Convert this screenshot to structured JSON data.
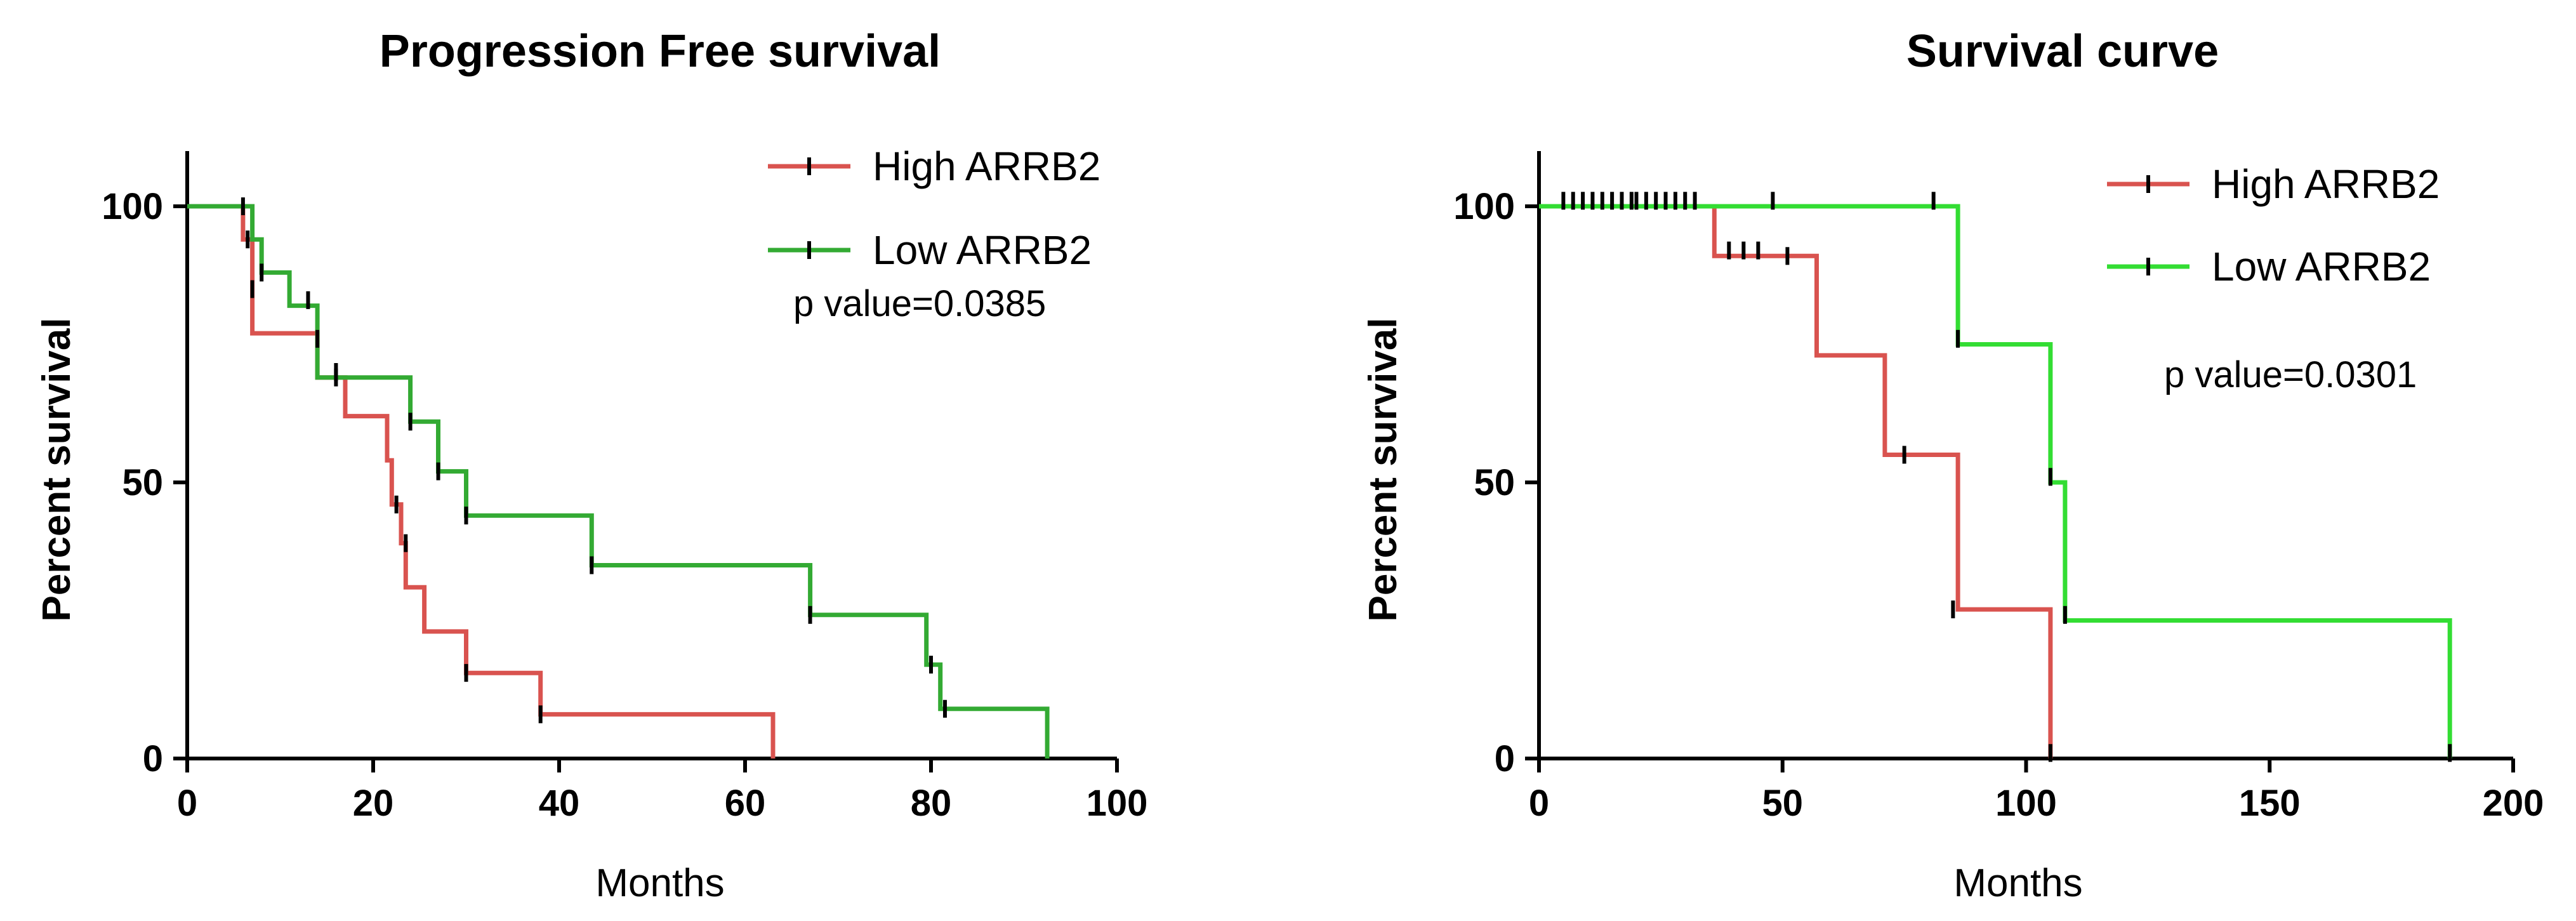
{
  "chart_data": [
    {
      "id": "pfs",
      "type": "line",
      "subtype": "kaplan-meier",
      "title": "Progression Free survival",
      "xlabel": "Months",
      "ylabel": "Percent survival",
      "xlim": [
        0,
        100
      ],
      "ylim": [
        0,
        110
      ],
      "xticks": [
        0,
        20,
        40,
        60,
        80,
        100
      ],
      "yticks": [
        0,
        50,
        100
      ],
      "annotation": "p value=0.0385",
      "series": [
        {
          "name": "High ARRB2",
          "color": "#d9534f",
          "steps": [
            [
              0,
              100
            ],
            [
              6,
              100
            ],
            [
              6,
              94
            ],
            [
              7,
              94
            ],
            [
              7,
              77
            ],
            [
              14,
              77
            ],
            [
              14,
              69
            ],
            [
              17,
              69
            ],
            [
              17,
              62
            ],
            [
              21.5,
              62
            ],
            [
              21.5,
              54
            ],
            [
              22,
              54
            ],
            [
              22,
              46
            ],
            [
              23,
              46
            ],
            [
              23,
              39
            ],
            [
              23.5,
              39
            ],
            [
              23.5,
              31
            ],
            [
              25.5,
              31
            ],
            [
              25.5,
              23
            ],
            [
              30,
              23
            ],
            [
              30,
              15.5
            ],
            [
              38,
              15.5
            ],
            [
              38,
              8
            ],
            [
              63,
              8
            ],
            [
              63,
              0
            ]
          ],
          "censored": [
            [
              6.5,
              94
            ],
            [
              7,
              85
            ],
            [
              16,
              69
            ],
            [
              22.5,
              46
            ],
            [
              23.5,
              39
            ],
            [
              30,
              15.5
            ],
            [
              38,
              8
            ]
          ]
        },
        {
          "name": "Low ARRB2",
          "color": "#33aa33",
          "steps": [
            [
              0,
              100
            ],
            [
              7,
              100
            ],
            [
              7,
              94
            ],
            [
              8,
              94
            ],
            [
              8,
              88
            ],
            [
              11,
              88
            ],
            [
              11,
              82
            ],
            [
              14,
              82
            ],
            [
              14,
              69
            ],
            [
              24,
              69
            ],
            [
              24,
              61
            ],
            [
              27,
              61
            ],
            [
              27,
              52
            ],
            [
              30,
              52
            ],
            [
              30,
              44
            ],
            [
              43.5,
              44
            ],
            [
              43.5,
              35
            ],
            [
              67,
              35
            ],
            [
              67,
              26
            ],
            [
              79.5,
              26
            ],
            [
              79.5,
              17
            ],
            [
              81,
              17
            ],
            [
              81,
              9
            ],
            [
              92.5,
              9
            ],
            [
              92.5,
              0
            ]
          ],
          "censored": [
            [
              6,
              100
            ],
            [
              8,
              88
            ],
            [
              13,
              83
            ],
            [
              14,
              76
            ],
            [
              16,
              70
            ],
            [
              24,
              61
            ],
            [
              27,
              52
            ],
            [
              30,
              44
            ],
            [
              43.5,
              35
            ],
            [
              67,
              26
            ],
            [
              80,
              17
            ],
            [
              81.5,
              9
            ]
          ]
        }
      ]
    },
    {
      "id": "os",
      "type": "line",
      "subtype": "kaplan-meier",
      "title": "Survival curve",
      "xlabel": "Months",
      "ylabel": "Percent survival",
      "xlim": [
        0,
        200
      ],
      "ylim": [
        0,
        110
      ],
      "xticks": [
        0,
        50,
        100,
        150,
        200
      ],
      "yticks": [
        0,
        50,
        100
      ],
      "annotation": "p value=0.0301",
      "series": [
        {
          "name": "High ARRB2",
          "color": "#d9534f",
          "steps": [
            [
              0,
              100
            ],
            [
              36,
              100
            ],
            [
              36,
              91
            ],
            [
              57,
              91
            ],
            [
              57,
              73
            ],
            [
              71,
              73
            ],
            [
              71,
              55
            ],
            [
              86,
              55
            ],
            [
              86,
              27
            ],
            [
              105,
              27
            ],
            [
              105,
              0
            ]
          ],
          "censored": [
            [
              39,
              92
            ],
            [
              42,
              92
            ],
            [
              45,
              92
            ],
            [
              51,
              91
            ],
            [
              75,
              55
            ],
            [
              85,
              27
            ],
            [
              105,
              1
            ]
          ]
        },
        {
          "name": "Low ARRB2",
          "color": "#33dd33",
          "steps": [
            [
              0,
              100
            ],
            [
              86,
              100
            ],
            [
              86,
              75
            ],
            [
              105,
              75
            ],
            [
              105,
              50
            ],
            [
              108,
              50
            ],
            [
              108,
              25
            ],
            [
              187,
              25
            ],
            [
              187,
              0
            ]
          ],
          "censored": [
            [
              5,
              101
            ],
            [
              7,
              101
            ],
            [
              9,
              101
            ],
            [
              11,
              101
            ],
            [
              13,
              101
            ],
            [
              15,
              101
            ],
            [
              17,
              101
            ],
            [
              19,
              101
            ],
            [
              20,
              101
            ],
            [
              22,
              101
            ],
            [
              24,
              101
            ],
            [
              26,
              101
            ],
            [
              28,
              101
            ],
            [
              30,
              101
            ],
            [
              32,
              101
            ],
            [
              48,
              101
            ],
            [
              81,
              101
            ],
            [
              86,
              76
            ],
            [
              105,
              51
            ],
            [
              108,
              26
            ],
            [
              187,
              1
            ]
          ]
        }
      ]
    }
  ]
}
